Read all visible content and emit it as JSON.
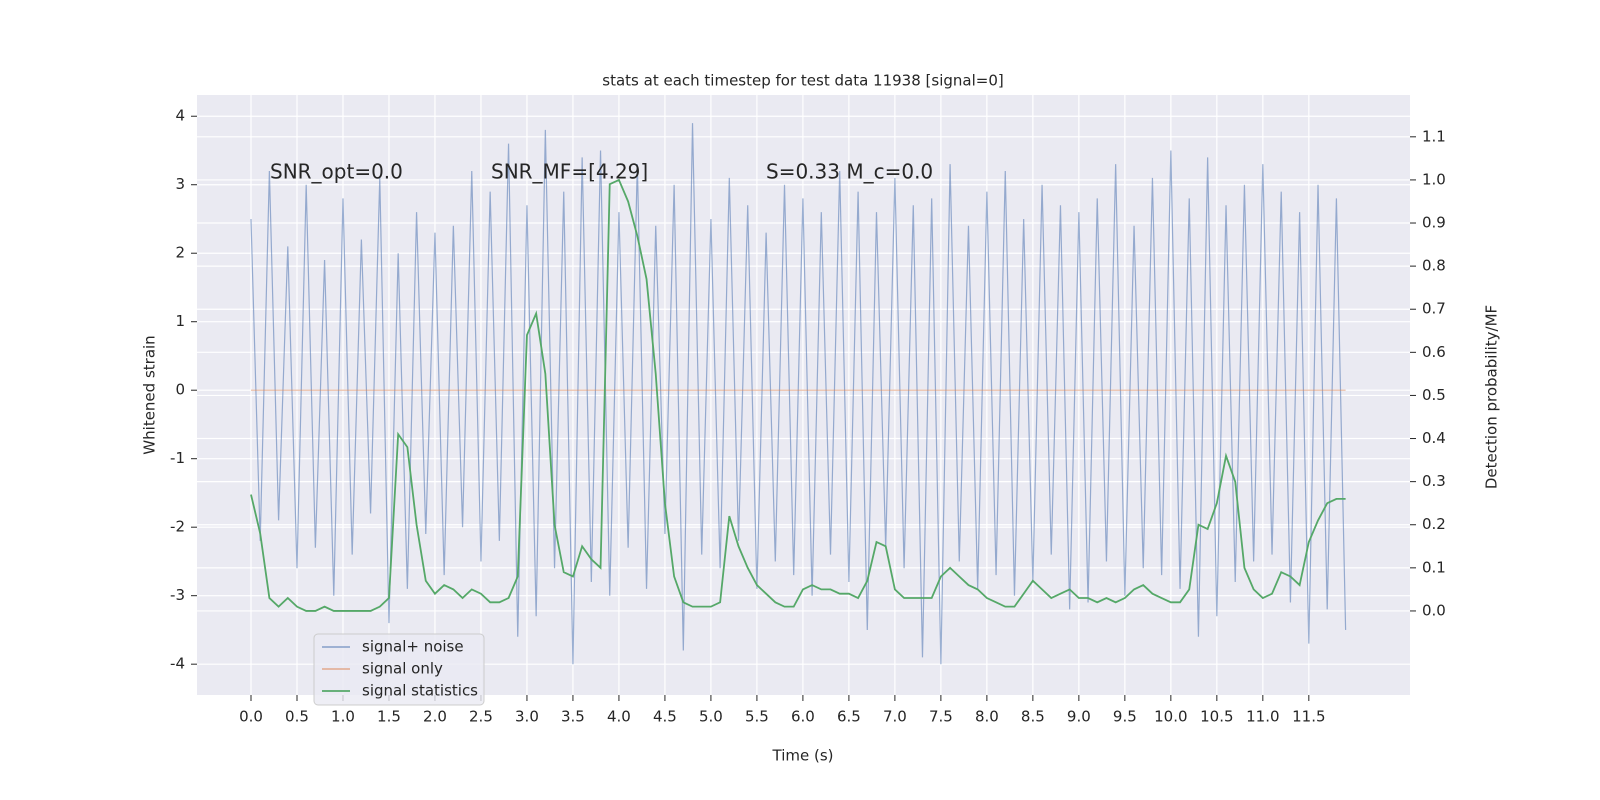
{
  "chart_data": {
    "type": "line",
    "title": "stats at each timestep for test data 11938 [signal=0]",
    "xlabel": "Time (s)",
    "ylabel": "Whitened strain",
    "y2label": "Detection probability/MF",
    "annotations": [
      "SNR_opt=0.0",
      "SNR_MF=[4.29]",
      "S=0.33   M_c=0.0"
    ],
    "grid": true,
    "legend": "lower left",
    "xlim": [
      -0.587,
      12.6
    ],
    "ylim": [
      -4.45,
      4.31
    ],
    "y2lim": [
      -0.195,
      1.197
    ],
    "xticks": [
      {
        "value": 0,
        "label": "0.0"
      },
      {
        "value": 0.5,
        "label": "0.5"
      },
      {
        "value": 1,
        "label": "1.0"
      },
      {
        "value": 1.5,
        "label": "1.5"
      },
      {
        "value": 2,
        "label": "2.0"
      },
      {
        "value": 2.5,
        "label": "2.5"
      },
      {
        "value": 3,
        "label": "3.0"
      },
      {
        "value": 3.5,
        "label": "3.5"
      },
      {
        "value": 4,
        "label": "4.0"
      },
      {
        "value": 4.5,
        "label": "4.5"
      },
      {
        "value": 5,
        "label": "5.0"
      },
      {
        "value": 5.5,
        "label": "5.5"
      },
      {
        "value": 6,
        "label": "6.0"
      },
      {
        "value": 6.5,
        "label": "6.5"
      },
      {
        "value": 7,
        "label": "7.0"
      },
      {
        "value": 7.5,
        "label": "7.5"
      },
      {
        "value": 8,
        "label": "8.0"
      },
      {
        "value": 8.5,
        "label": "8.5"
      },
      {
        "value": 9,
        "label": "9.0"
      },
      {
        "value": 9.5,
        "label": "9.5"
      },
      {
        "value": 10,
        "label": "10.0"
      },
      {
        "value": 10.5,
        "label": "10.5"
      },
      {
        "value": 11,
        "label": "11.0"
      },
      {
        "value": 11.5,
        "label": "11.5"
      }
    ],
    "yticks": [
      -4,
      -3,
      -2,
      -1,
      0,
      1,
      2,
      3,
      4
    ],
    "y2ticks": [
      {
        "value": 0,
        "label": "0.0"
      },
      {
        "value": 0.1,
        "label": "0.1"
      },
      {
        "value": 0.2,
        "label": "0.2"
      },
      {
        "value": 0.3,
        "label": "0.3"
      },
      {
        "value": 0.4,
        "label": "0.4"
      },
      {
        "value": 0.5,
        "label": "0.5"
      },
      {
        "value": 0.6,
        "label": "0.6"
      },
      {
        "value": 0.7,
        "label": "0.7"
      },
      {
        "value": 0.8,
        "label": "0.8"
      },
      {
        "value": 0.9,
        "label": "0.9"
      },
      {
        "value": 1,
        "label": "1.0"
      },
      {
        "value": 1.1,
        "label": "1.1"
      }
    ],
    "x": [
      0,
      0.1,
      0.2,
      0.3,
      0.4,
      0.5,
      0.6,
      0.7,
      0.8,
      0.9,
      1,
      1.1,
      1.2,
      1.3,
      1.4,
      1.5,
      1.6,
      1.7,
      1.8,
      1.9,
      2,
      2.1,
      2.2,
      2.3,
      2.4,
      2.5,
      2.6,
      2.7,
      2.8,
      2.9,
      3,
      3.1,
      3.2,
      3.3,
      3.4,
      3.5,
      3.6,
      3.7,
      3.8,
      3.9,
      4,
      4.1,
      4.2,
      4.3,
      4.4,
      4.5,
      4.6,
      4.7,
      4.8,
      4.9,
      5,
      5.1,
      5.2,
      5.3,
      5.4,
      5.5,
      5.6,
      5.7,
      5.8,
      5.9,
      6,
      6.1,
      6.2,
      6.3,
      6.4,
      6.5,
      6.6,
      6.7,
      6.8,
      6.9,
      7,
      7.1,
      7.2,
      7.3,
      7.4,
      7.5,
      7.6,
      7.7,
      7.8,
      7.9,
      8,
      8.1,
      8.2,
      8.3,
      8.4,
      8.5,
      8.6,
      8.7,
      8.8,
      8.9,
      9,
      9.1,
      9.2,
      9.3,
      9.4,
      9.5,
      9.6,
      9.7,
      9.8,
      9.9,
      10,
      10.1,
      10.2,
      10.3,
      10.4,
      10.5,
      10.6,
      10.7,
      10.8,
      10.9,
      11,
      11.1,
      11.2,
      11.3,
      11.4,
      11.5,
      11.6,
      11.7,
      11.8,
      11.9
    ],
    "series": [
      {
        "name": "signal+ noise",
        "color": "#4c72b0",
        "values": [
          2.5,
          -2.2,
          3.2,
          -1.9,
          2.1,
          -2.6,
          3.0,
          -2.3,
          1.9,
          -3.0,
          2.8,
          -2.4,
          2.2,
          -1.8,
          3.1,
          -3.4,
          2.0,
          -2.9,
          2.6,
          -2.1,
          2.3,
          -2.7,
          2.4,
          -2.0,
          3.2,
          -2.5,
          2.9,
          -2.2,
          3.6,
          -3.6,
          2.7,
          -3.3,
          3.8,
          -2.6,
          2.9,
          -4.0,
          3.4,
          -2.8,
          3.5,
          -3.0,
          2.6,
          -2.3,
          3.3,
          -2.9,
          2.4,
          -2.1,
          3.0,
          -3.8,
          3.9,
          -2.4,
          2.5,
          -2.6,
          3.1,
          -2.2,
          2.7,
          -2.9,
          2.3,
          -2.5,
          3.0,
          -2.7,
          2.8,
          -3.0,
          2.6,
          -2.4,
          3.2,
          -2.8,
          2.9,
          -3.5,
          2.6,
          -2.3,
          3.1,
          -2.6,
          2.7,
          -3.9,
          2.8,
          -4.0,
          3.3,
          -2.5,
          2.4,
          -2.9,
          2.9,
          -2.7,
          3.2,
          -3.0,
          2.5,
          -2.8,
          3.0,
          -2.4,
          2.7,
          -3.2,
          2.6,
          -3.1,
          2.8,
          -2.5,
          3.3,
          -3.0,
          2.4,
          -2.6,
          3.1,
          -2.7,
          3.5,
          -2.9,
          2.8,
          -3.6,
          3.4,
          -3.3,
          2.7,
          -2.8,
          3.0,
          -2.5,
          3.3,
          -2.4,
          2.9,
          -3.1,
          2.6,
          -3.7,
          3.0,
          -3.2,
          2.8,
          -3.5
        ]
      },
      {
        "name": "signal only",
        "color": "#dd8452",
        "values": [
          0,
          0,
          0,
          0,
          0,
          0,
          0,
          0,
          0,
          0,
          0,
          0,
          0,
          0,
          0,
          0,
          0,
          0,
          0,
          0,
          0,
          0,
          0,
          0,
          0,
          0,
          0,
          0,
          0,
          0,
          0,
          0,
          0,
          0,
          0,
          0,
          0,
          0,
          0,
          0,
          0,
          0,
          0,
          0,
          0,
          0,
          0,
          0,
          0,
          0,
          0,
          0,
          0,
          0,
          0,
          0,
          0,
          0,
          0,
          0,
          0,
          0,
          0,
          0,
          0,
          0,
          0,
          0,
          0,
          0,
          0,
          0,
          0,
          0,
          0,
          0,
          0,
          0,
          0,
          0,
          0,
          0,
          0,
          0,
          0,
          0,
          0,
          0,
          0,
          0,
          0,
          0,
          0,
          0,
          0,
          0,
          0,
          0,
          0,
          0,
          0,
          0,
          0,
          0,
          0,
          0,
          0,
          0,
          0,
          0,
          0,
          0,
          0,
          0,
          0,
          0,
          0,
          0,
          0,
          0
        ]
      },
      {
        "name": "signal statistics",
        "color": "#55a868",
        "axis": "y2",
        "values": [
          0.27,
          0.18,
          0.03,
          0.01,
          0.03,
          0.01,
          0.0,
          0.0,
          0.01,
          0.0,
          0.0,
          0.0,
          0.0,
          0.0,
          0.01,
          0.03,
          0.41,
          0.38,
          0.2,
          0.07,
          0.04,
          0.06,
          0.05,
          0.03,
          0.05,
          0.04,
          0.02,
          0.02,
          0.03,
          0.08,
          0.64,
          0.69,
          0.55,
          0.2,
          0.09,
          0.08,
          0.15,
          0.12,
          0.1,
          0.99,
          1.0,
          0.95,
          0.87,
          0.77,
          0.55,
          0.25,
          0.08,
          0.02,
          0.01,
          0.01,
          0.01,
          0.02,
          0.22,
          0.15,
          0.1,
          0.06,
          0.04,
          0.02,
          0.01,
          0.01,
          0.05,
          0.06,
          0.05,
          0.05,
          0.04,
          0.04,
          0.03,
          0.07,
          0.16,
          0.15,
          0.05,
          0.03,
          0.03,
          0.03,
          0.03,
          0.08,
          0.1,
          0.08,
          0.06,
          0.05,
          0.03,
          0.02,
          0.01,
          0.01,
          0.04,
          0.07,
          0.05,
          0.03,
          0.04,
          0.05,
          0.03,
          0.03,
          0.02,
          0.03,
          0.02,
          0.03,
          0.05,
          0.06,
          0.04,
          0.03,
          0.02,
          0.02,
          0.05,
          0.2,
          0.19,
          0.25,
          0.36,
          0.3,
          0.1,
          0.05,
          0.03,
          0.04,
          0.09,
          0.08,
          0.06,
          0.16,
          0.21,
          0.25,
          0.26,
          0.26
        ]
      }
    ]
  }
}
